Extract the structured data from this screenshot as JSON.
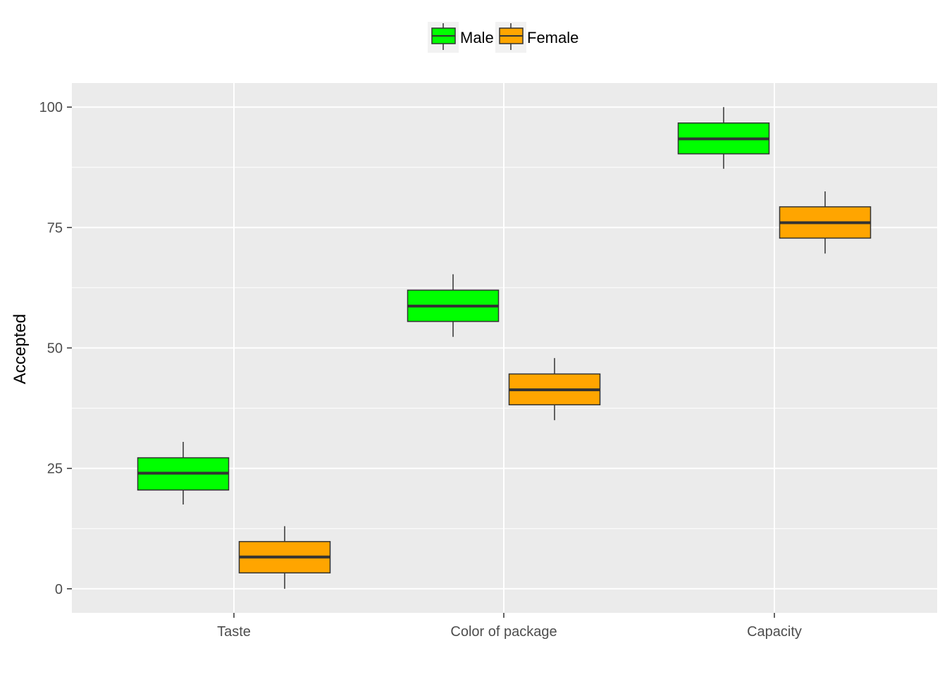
{
  "chart_data": {
    "type": "boxplot",
    "categories": [
      "Taste",
      "Color of package",
      "Capacity"
    ],
    "xlabel": "",
    "ylabel": "Accepted",
    "ylim": [
      -5,
      105
    ],
    "yticks": [
      0,
      25,
      50,
      75,
      100
    ],
    "grid": true,
    "legend_position": "top",
    "series": [
      {
        "name": "Male",
        "color": "#00ff00",
        "boxes": [
          {
            "min": 17.5,
            "q1": 20.5,
            "median": 24,
            "q3": 27.2,
            "max": 30.5
          },
          {
            "min": 52.3,
            "q1": 55.5,
            "median": 58.7,
            "q3": 62,
            "max": 65.3
          },
          {
            "min": 87.2,
            "q1": 90.3,
            "median": 93.4,
            "q3": 96.7,
            "max": 100
          }
        ]
      },
      {
        "name": "Female",
        "color": "#ffa500",
        "boxes": [
          {
            "min": 0,
            "q1": 3.3,
            "median": 6.6,
            "q3": 9.8,
            "max": 13
          },
          {
            "min": 35,
            "q1": 38.2,
            "median": 41.3,
            "q3": 44.6,
            "max": 47.9
          },
          {
            "min": 69.6,
            "q1": 72.8,
            "median": 76,
            "q3": 79.3,
            "max": 82.5
          }
        ]
      }
    ]
  },
  "colors": {
    "panel_background": "#ebebeb",
    "grid_line": "#ffffff",
    "box_outline": "#333333"
  }
}
